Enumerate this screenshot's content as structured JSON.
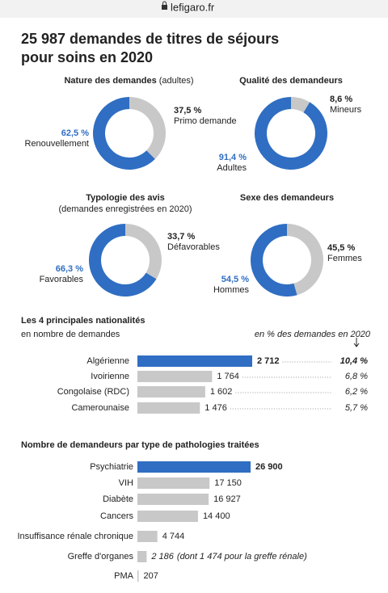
{
  "url": "lefigaro.fr",
  "title": [
    "25 987 demandes de titres de séjours",
    "pour soins en 2020"
  ],
  "chart_data": [
    {
      "type": "pie",
      "title": "Nature des demandes",
      "title_note": "(adultes)",
      "categories": [
        "Primo demande",
        "Renouvellement"
      ],
      "values": [
        37.5,
        62.5
      ],
      "value_labels": [
        "37,5 %",
        "62,5 %"
      ],
      "colors": [
        "#c8c8c8",
        "#2f6ec2"
      ]
    },
    {
      "type": "pie",
      "title": "Qualité des demandeurs",
      "categories": [
        "Mineurs",
        "Adultes"
      ],
      "values": [
        8.6,
        91.4
      ],
      "value_labels": [
        "8,6 %",
        "91,4 %"
      ],
      "colors": [
        "#c8c8c8",
        "#2f6ec2"
      ]
    },
    {
      "type": "pie",
      "title": "Typologie des avis",
      "subtitle": "(demandes enregistrées en 2020)",
      "categories": [
        "Défavorables",
        "Favorables"
      ],
      "values": [
        33.7,
        66.3
      ],
      "value_labels": [
        "33,7 %",
        "66,3 %"
      ],
      "colors": [
        "#c8c8c8",
        "#2f6ec2"
      ]
    },
    {
      "type": "pie",
      "title": "Sexe des demandeurs",
      "categories": [
        "Femmes",
        "Hommes"
      ],
      "values": [
        45.5,
        54.5
      ],
      "value_labels": [
        "45,5 %",
        "54,5 %"
      ],
      "colors": [
        "#c8c8c8",
        "#2f6ec2"
      ]
    },
    {
      "type": "bar",
      "title": "Les 4 principales nationalités",
      "subtitle": "en nombre de demandes",
      "note": "en % des demandes en 2020",
      "categories": [
        "Algérienne",
        "Ivoirienne",
        "Congolaise (RDC)",
        "Camerounaise"
      ],
      "values": [
        2712,
        1764,
        1602,
        1476
      ],
      "value_labels": [
        "2 712",
        "1 764",
        "1 602",
        "1 476"
      ],
      "shares": [
        10.4,
        6.8,
        6.2,
        5.7
      ],
      "share_labels": [
        "10,4 %",
        "6,8 %",
        "6,2 %",
        "5,7 %"
      ],
      "colors": [
        "#2f6ec2",
        "#c8c8c8",
        "#c8c8c8",
        "#c8c8c8"
      ]
    },
    {
      "type": "bar",
      "title": "Nombre de demandeurs par type de pathologies traitées",
      "categories": [
        "Psychiatrie",
        "VIH",
        "Diabète",
        "Cancers",
        "Insuffisance rénale chronique",
        "Greffe d'organes",
        "PMA"
      ],
      "values": [
        26900,
        17150,
        16927,
        14400,
        4744,
        2186,
        207
      ],
      "value_labels": [
        "26 900",
        "17 150",
        "16 927",
        "14 400",
        "4 744",
        "2 186",
        "207"
      ],
      "value_notes": [
        null,
        null,
        null,
        null,
        null,
        "(dont 1 474 pour la greffe rénale)",
        null
      ],
      "colors": [
        "#2f6ec2",
        "#c8c8c8",
        "#c8c8c8",
        "#c8c8c8",
        "#c8c8c8",
        "#c8c8c8",
        "#c8c8c8"
      ]
    }
  ]
}
